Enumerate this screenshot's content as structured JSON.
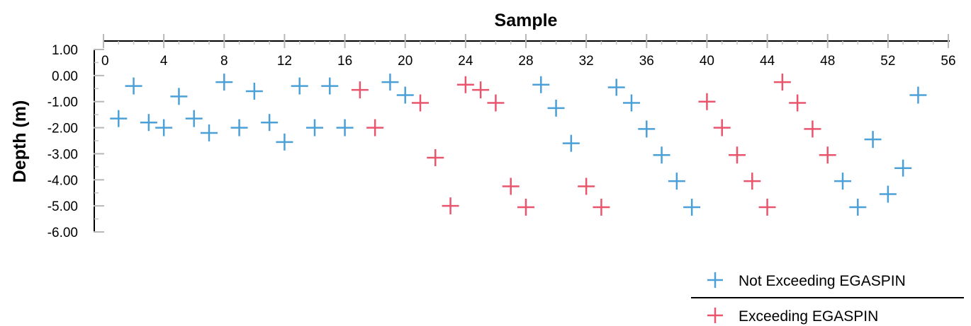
{
  "chart_data": {
    "type": "scatter",
    "xlabel": "Sample",
    "ylabel": "Depth (m)",
    "xlim": [
      0,
      56
    ],
    "ylim": [
      -6,
      1
    ],
    "x_ticks": [
      0,
      4,
      8,
      12,
      16,
      20,
      24,
      28,
      32,
      36,
      40,
      44,
      48,
      52,
      56
    ],
    "y_ticks": [
      "1.00",
      "0.00",
      "-1.00",
      "-2.00",
      "-3.00",
      "-4.00",
      "-5.00",
      "-6.00"
    ],
    "x_axis_position": "top",
    "marker": "plus",
    "legend_position": "bottom-right",
    "series": [
      {
        "name": "Not Exceeding EGASPIN",
        "color": "#4ba0d8",
        "points": [
          [
            1,
            -1.65
          ],
          [
            2,
            -0.4
          ],
          [
            3,
            -1.8
          ],
          [
            4,
            -2.0
          ],
          [
            5,
            -0.8
          ],
          [
            6,
            -1.65
          ],
          [
            7,
            -2.2
          ],
          [
            8,
            -0.25
          ],
          [
            9,
            -2.0
          ],
          [
            10,
            -0.6
          ],
          [
            11,
            -1.8
          ],
          [
            12,
            -2.55
          ],
          [
            13,
            -0.4
          ],
          [
            14,
            -2.0
          ],
          [
            15,
            -0.4
          ],
          [
            16,
            -2.0
          ],
          [
            19,
            -0.25
          ],
          [
            20,
            -0.75
          ],
          [
            29,
            -0.35
          ],
          [
            30,
            -1.25
          ],
          [
            31,
            -2.6
          ],
          [
            34,
            -0.45
          ],
          [
            35,
            -1.05
          ],
          [
            36,
            -2.05
          ],
          [
            37,
            -3.05
          ],
          [
            38,
            -4.05
          ],
          [
            39,
            -5.05
          ],
          [
            49,
            -4.05
          ],
          [
            50,
            -5.05
          ],
          [
            51,
            -2.45
          ],
          [
            52,
            -4.55
          ],
          [
            53,
            -3.55
          ],
          [
            54,
            -0.75
          ]
        ]
      },
      {
        "name": "Exceeding EGASPIN",
        "color": "#e8556d",
        "points": [
          [
            17,
            -0.55
          ],
          [
            18,
            -2.0
          ],
          [
            21,
            -1.05
          ],
          [
            22,
            -3.15
          ],
          [
            23,
            -5.0
          ],
          [
            24,
            -0.35
          ],
          [
            25,
            -0.55
          ],
          [
            26,
            -1.05
          ],
          [
            27,
            -4.25
          ],
          [
            28,
            -5.05
          ],
          [
            32,
            -4.25
          ],
          [
            33,
            -5.05
          ],
          [
            40,
            -1.0
          ],
          [
            41,
            -2.0
          ],
          [
            42,
            -3.05
          ],
          [
            43,
            -4.05
          ],
          [
            44,
            -5.05
          ],
          [
            45,
            -0.25
          ],
          [
            46,
            -1.05
          ],
          [
            47,
            -2.05
          ],
          [
            48,
            -3.05
          ]
        ]
      }
    ]
  }
}
